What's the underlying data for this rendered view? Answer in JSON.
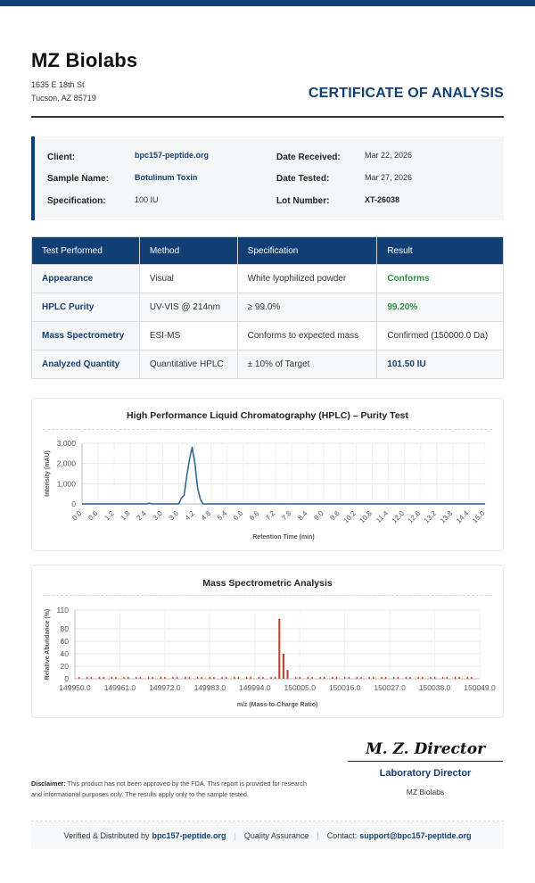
{
  "header": {
    "lab_name": "MZ Biolabs",
    "address_line1": "1635 E 18th St",
    "address_line2": "Tucson, AZ 85719",
    "certificate_title": "CERTIFICATE OF ANALYSIS"
  },
  "info": {
    "client_label": "Client:",
    "client_value": "bpc157-peptide.org",
    "sample_label": "Sample Name:",
    "sample_value": "Botulinum Toxin",
    "spec_label": "Specification:",
    "spec_value": "100 IU",
    "received_label": "Date Received:",
    "received_value": "Mar 22, 2026",
    "tested_label": "Date Tested:",
    "tested_value": "Mar 27, 2026",
    "lot_label": "Lot Number:",
    "lot_value": "XT-26038"
  },
  "results_table": {
    "headers": [
      "Test Performed",
      "Method",
      "Specification",
      "Result"
    ],
    "rows": [
      [
        "Appearance",
        "Visual",
        "White lyophilized powder",
        "Conforms"
      ],
      [
        "HPLC Purity",
        "UV-VIS @ 214nm",
        "≥ 99.0%",
        "99.20%"
      ],
      [
        "Mass Spectrometry",
        "ESI-MS",
        "Conforms to expected mass",
        "Confirmed (150000.0 Da)"
      ],
      [
        "Analyzed Quantity",
        "Quantitative HPLC",
        "± 10% of Target",
        "101.50 IU"
      ]
    ]
  },
  "chart_data": [
    {
      "type": "line",
      "title": "High Performance Liquid Chromatography (HPLC) – Purity Test",
      "xlabel": "Retention Time (min)",
      "ylabel": "Intensity (mAU)",
      "xlim": [
        0,
        15
      ],
      "ylim": [
        0,
        3000
      ],
      "x_ticks": [
        "0.0",
        "0.6",
        "1.2",
        "1.8",
        "2.4",
        "3.0",
        "3.6",
        "4.2",
        "4.8",
        "5.4",
        "6.0",
        "6.6",
        "7.2",
        "7.8",
        "8.4",
        "9.0",
        "9.6",
        "10.2",
        "10.8",
        "11.4",
        "12.0",
        "12.6",
        "13.2",
        "13.8",
        "14.4",
        "15.0"
      ],
      "y_ticks": [
        "0",
        "1,000",
        "2,000",
        "3,000"
      ],
      "grid": true,
      "color": "#2c5f8f",
      "series": [
        {
          "x": [
            0,
            2.4,
            2.5,
            2.6,
            3.6,
            3.7,
            3.8,
            3.9,
            4.0,
            4.1,
            4.2,
            4.3,
            4.4,
            4.5,
            15
          ],
          "y": [
            0,
            0,
            40,
            0,
            0,
            300,
            420,
            1400,
            2200,
            2800,
            2000,
            800,
            250,
            0,
            0
          ]
        }
      ]
    },
    {
      "type": "bar",
      "title": "Mass Spectrometric Analysis",
      "xlabel": "m/z (Mass-to-Charge Ratio)",
      "ylabel": "Relative Abundance (%)",
      "xlim": [
        149950,
        150049
      ],
      "ylim": [
        0,
        110
      ],
      "x_ticks": [
        "149950.0",
        "149961.0",
        "149972.0",
        "149983.0",
        "149994.0",
        "150005.0",
        "150016.0",
        "150027.0",
        "150038.0",
        "150049.0"
      ],
      "y_ticks": [
        "0",
        "20",
        "40",
        "60",
        "80",
        "110"
      ],
      "grid": true,
      "color": "#c0392b",
      "peaks": [
        {
          "x": 150000.0,
          "y": 96
        },
        {
          "x": 150001.0,
          "y": 40
        },
        {
          "x": 150002.0,
          "y": 14
        }
      ],
      "baseline_noise_level": 3
    }
  ],
  "signature": {
    "name": "M. Z. Director",
    "title": "Laboratory Director",
    "org": "MZ Biolabs"
  },
  "disclaimer": {
    "label": "Disclaimer:",
    "text": " This product has not been approved by the FDA. This report is provided for research and informational purposes only. The results apply only to the sample tested."
  },
  "footer": {
    "verified_text": "Verified & Distributed by",
    "verified_link": "bpc157-peptide.org",
    "qa_text": "Quality Assurance",
    "contact_text": "Contact:",
    "contact_link": "support@bpc157-peptide.org"
  }
}
